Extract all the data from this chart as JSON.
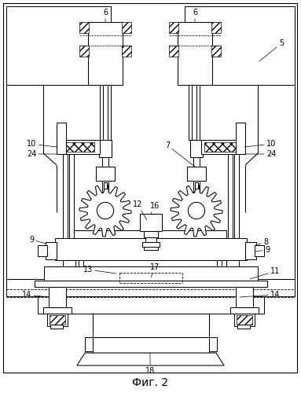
{
  "title": "Фиг. 2",
  "fig_width": 3.83,
  "fig_height": 5.0,
  "dpi": 100,
  "lw": 0.75
}
